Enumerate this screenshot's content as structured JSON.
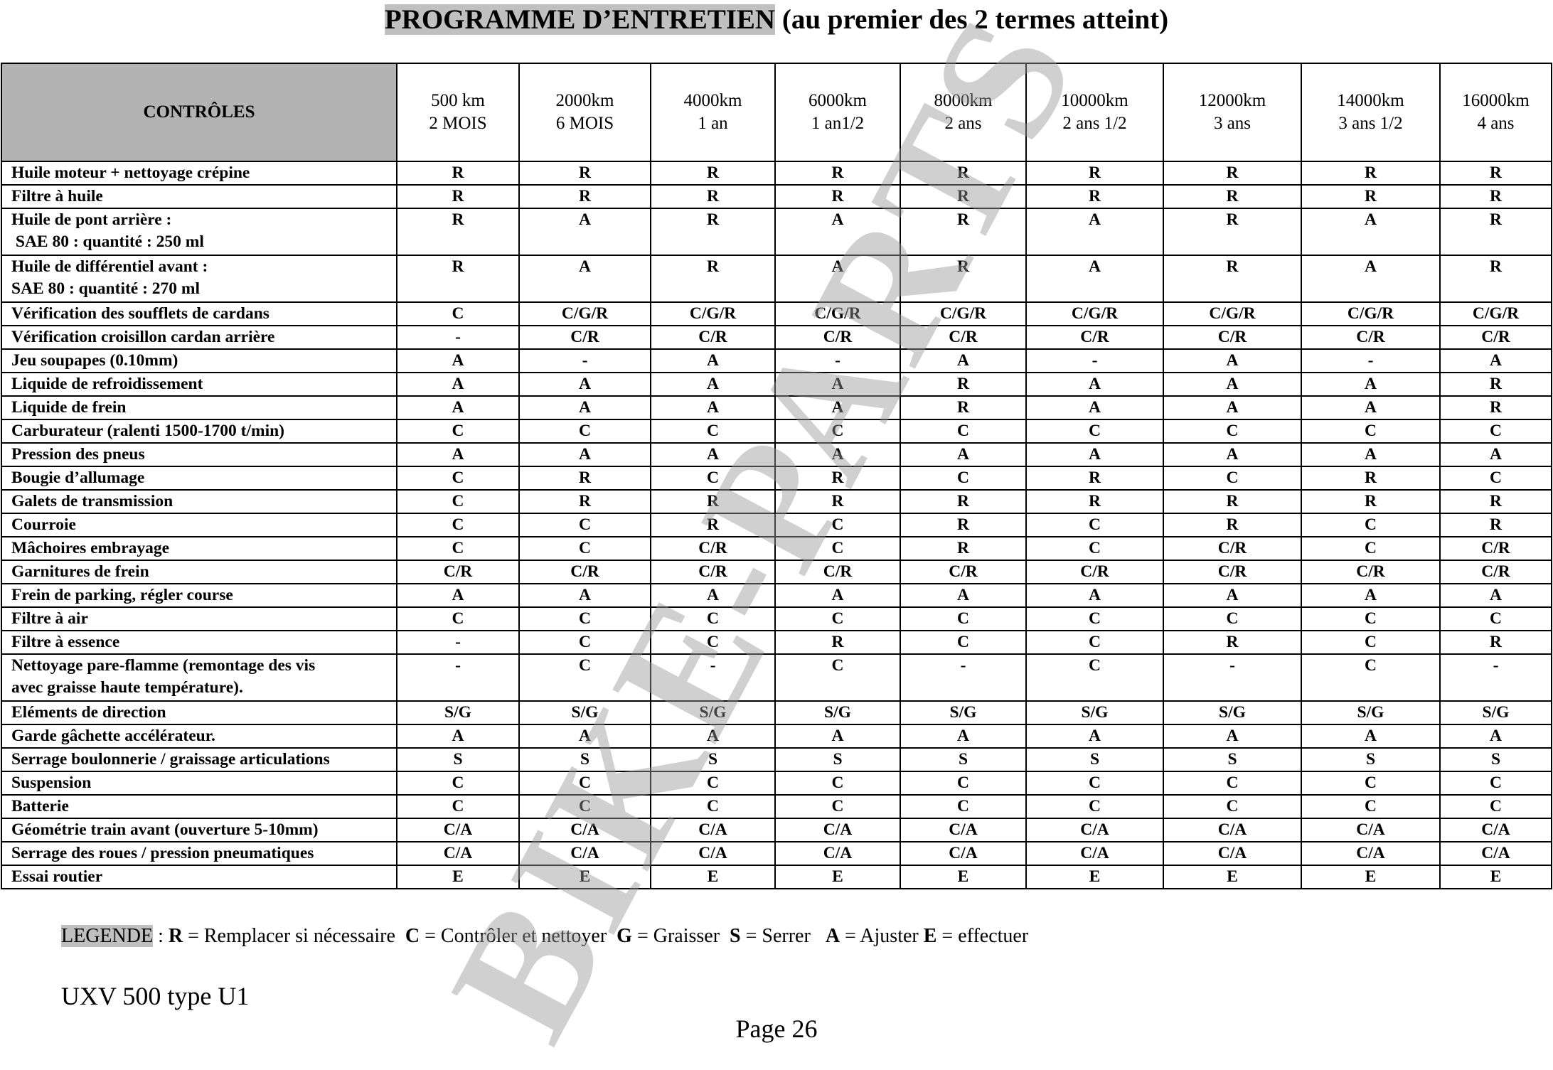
{
  "title": {
    "highlighted": "PROGRAMME D’ENTRETIEN",
    "rest": " (au premier des 2 termes atteint)"
  },
  "table": {
    "controls_header": "CONTRÔLES",
    "columns": [
      {
        "km": "500 km",
        "time": "2 MOIS"
      },
      {
        "km": "2000km",
        "time": "6 MOIS"
      },
      {
        "km": "4000km",
        "time": "1 an"
      },
      {
        "km": "6000km",
        "time": "1 an1/2"
      },
      {
        "km": "8000km",
        "time": "2 ans"
      },
      {
        "km": "10000km",
        "time": "2 ans 1/2"
      },
      {
        "km": "12000km",
        "time": "3 ans"
      },
      {
        "km": "14000km",
        "time": "3 ans 1/2"
      },
      {
        "km": "16000km",
        "time": "4 ans"
      }
    ],
    "rows": [
      {
        "label": [
          "Huile moteur + nettoyage crépine"
        ],
        "values": [
          "R",
          "R",
          "R",
          "R",
          "R",
          "R",
          "R",
          "R",
          "R"
        ]
      },
      {
        "label": [
          "Filtre à huile"
        ],
        "values": [
          "R",
          "R",
          "R",
          "R",
          "R",
          "R",
          "R",
          "R",
          "R"
        ]
      },
      {
        "label": [
          "Huile de pont arrière :",
          " SAE 80 : quantité : 250 ml"
        ],
        "values": [
          "R",
          "A",
          "R",
          "A",
          "R",
          "A",
          "R",
          "A",
          "R"
        ]
      },
      {
        "label": [
          "Huile de différentiel avant :",
          "SAE 80 : quantité : 270 ml"
        ],
        "values": [
          "R",
          "A",
          "R",
          "A",
          "R",
          "A",
          "R",
          "A",
          "R"
        ]
      },
      {
        "label": [
          "Vérification des soufflets de cardans"
        ],
        "values": [
          "C",
          "C/G/R",
          "C/G/R",
          "C/G/R",
          "C/G/R",
          "C/G/R",
          "C/G/R",
          "C/G/R",
          "C/G/R"
        ]
      },
      {
        "label": [
          "Vérification croisillon cardan arrière"
        ],
        "values": [
          "-",
          "C/R",
          "C/R",
          "C/R",
          "C/R",
          "C/R",
          "C/R",
          "C/R",
          "C/R"
        ]
      },
      {
        "label": [
          "Jeu soupapes (0.10mm)"
        ],
        "values": [
          "A",
          "-",
          "A",
          "-",
          "A",
          "-",
          "A",
          "-",
          "A"
        ]
      },
      {
        "label": [
          "Liquide de refroidissement"
        ],
        "values": [
          "A",
          "A",
          "A",
          "A",
          "R",
          "A",
          "A",
          "A",
          "R"
        ]
      },
      {
        "label": [
          "Liquide de frein"
        ],
        "values": [
          "A",
          "A",
          "A",
          "A",
          "R",
          "A",
          "A",
          "A",
          "R"
        ]
      },
      {
        "label": [
          "Carburateur (ralenti 1500-1700 t/min)"
        ],
        "values": [
          "C",
          "C",
          "C",
          "C",
          "C",
          "C",
          "C",
          "C",
          "C"
        ]
      },
      {
        "label": [
          "Pression des pneus"
        ],
        "values": [
          "A",
          "A",
          "A",
          "A",
          "A",
          "A",
          "A",
          "A",
          "A"
        ]
      },
      {
        "label": [
          "Bougie d’allumage"
        ],
        "values": [
          "C",
          "R",
          "C",
          "R",
          "C",
          "R",
          "C",
          "R",
          "C"
        ]
      },
      {
        "label": [
          "Galets de transmission"
        ],
        "values": [
          "C",
          "R",
          "R",
          "R",
          "R",
          "R",
          "R",
          "R",
          "R"
        ]
      },
      {
        "label": [
          "Courroie"
        ],
        "values": [
          "C",
          "C",
          "R",
          "C",
          "R",
          "C",
          "R",
          "C",
          "R"
        ]
      },
      {
        "label": [
          "Mâchoires embrayage"
        ],
        "values": [
          "C",
          "C",
          "C/R",
          "C",
          "R",
          "C",
          "C/R",
          "C",
          "C/R"
        ]
      },
      {
        "label": [
          "Garnitures de frein"
        ],
        "values": [
          "C/R",
          "C/R",
          "C/R",
          "C/R",
          "C/R",
          "C/R",
          "C/R",
          "C/R",
          "C/R"
        ]
      },
      {
        "label": [
          "Frein de parking, régler course"
        ],
        "values": [
          "A",
          "A",
          "A",
          "A",
          "A",
          "A",
          "A",
          "A",
          "A"
        ]
      },
      {
        "label": [
          "Filtre à air"
        ],
        "values": [
          "C",
          "C",
          "C",
          "C",
          "C",
          "C",
          "C",
          "C",
          "C"
        ]
      },
      {
        "label": [
          "Filtre à essence"
        ],
        "values": [
          "-",
          "C",
          "C",
          "R",
          "C",
          "C",
          "R",
          "C",
          "R"
        ]
      },
      {
        "label": [
          "Nettoyage pare-flamme (remontage des vis",
          "avec graisse haute température)."
        ],
        "values": [
          "-",
          "C",
          "-",
          "C",
          "-",
          "C",
          "-",
          "C",
          "-"
        ]
      },
      {
        "label": [
          "Eléments de direction"
        ],
        "values": [
          "S/G",
          "S/G",
          "S/G",
          "S/G",
          "S/G",
          "S/G",
          "S/G",
          "S/G",
          "S/G"
        ]
      },
      {
        "label": [
          "Garde gâchette accélérateur."
        ],
        "values": [
          "A",
          "A",
          "A",
          "A",
          "A",
          "A",
          "A",
          "A",
          "A"
        ]
      },
      {
        "label": [
          "Serrage boulonnerie / graissage articulations"
        ],
        "values": [
          "S",
          "S",
          "S",
          "S",
          "S",
          "S",
          "S",
          "S",
          "S"
        ]
      },
      {
        "label": [
          "Suspension"
        ],
        "values": [
          "C",
          "C",
          "C",
          "C",
          "C",
          "C",
          "C",
          "C",
          "C"
        ]
      },
      {
        "label": [
          "Batterie"
        ],
        "values": [
          "C",
          "C",
          "C",
          "C",
          "C",
          "C",
          "C",
          "C",
          "C"
        ]
      },
      {
        "label": [
          "Géométrie train avant (ouverture 5-10mm)"
        ],
        "values": [
          "C/A",
          "C/A",
          "C/A",
          "C/A",
          "C/A",
          "C/A",
          "C/A",
          "C/A",
          "C/A"
        ]
      },
      {
        "label": [
          "Serrage des roues / pression pneumatiques"
        ],
        "values": [
          "C/A",
          "C/A",
          "C/A",
          "C/A",
          "C/A",
          "C/A",
          "C/A",
          "C/A",
          "C/A"
        ]
      },
      {
        "label": [
          "Essai routier"
        ],
        "values": [
          "E",
          "E",
          "E",
          "E",
          "E",
          "E",
          "E",
          "E",
          "E"
        ]
      }
    ]
  },
  "legend": {
    "label": "LEGENDE",
    "separator": " : ",
    "items": [
      {
        "key": "R",
        "text": " = Remplacer si nécessaire  "
      },
      {
        "key": "C",
        "text": " = Contrôler et nettoyer  "
      },
      {
        "key": "G",
        "text": " = Graisser  "
      },
      {
        "key": "S",
        "text": " = Serrer   "
      },
      {
        "key": "A",
        "text": " = Ajuster "
      },
      {
        "key": "E",
        "text": " = effectuer"
      }
    ]
  },
  "footer": {
    "model": "UXV 500 type U1",
    "page": "Page 26"
  },
  "watermark": "BIKE-PARTS",
  "colors": {
    "highlight": "#c0c0c0",
    "header_bg": "#b3b3b3"
  }
}
